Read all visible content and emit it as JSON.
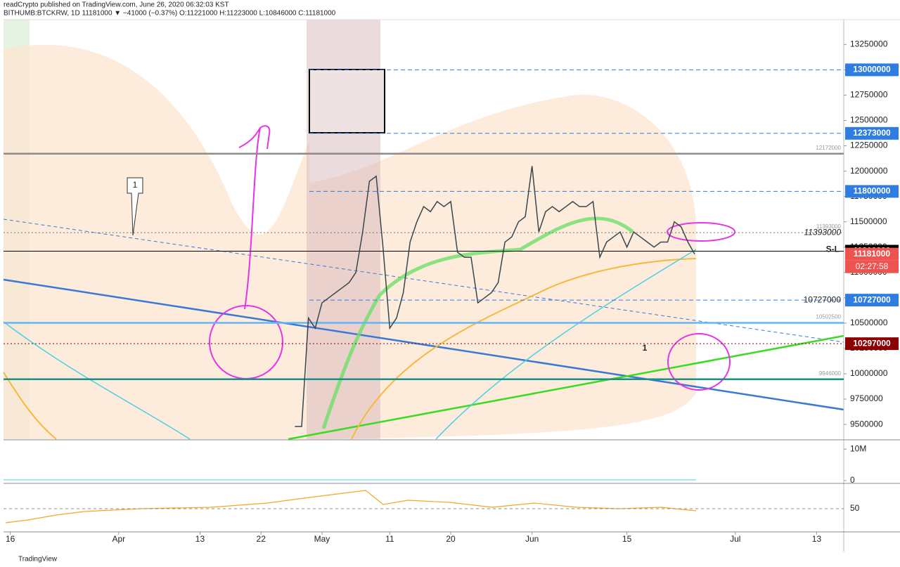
{
  "chart_data": {
    "type": "line",
    "title": "readCrypto published on TradingView.com, June 26, 2020 06:32:03 KST",
    "subtitle": "BITHUMB:BTCKRW, 1D 11181000 ▼ −41000 (−0.37%) O:11221000 H:11223000 L:10846000 C:11181000",
    "x": [
      "2020-04-27",
      "2020-04-28",
      "2020-04-29",
      "2020-04-30",
      "2020-05-01",
      "2020-05-02",
      "2020-05-03",
      "2020-05-04",
      "2020-05-05",
      "2020-05-06",
      "2020-05-07",
      "2020-05-08",
      "2020-05-09",
      "2020-05-10",
      "2020-05-11",
      "2020-05-12",
      "2020-05-13",
      "2020-05-14",
      "2020-05-15",
      "2020-05-16",
      "2020-05-17",
      "2020-05-18",
      "2020-05-19",
      "2020-05-20",
      "2020-05-21",
      "2020-05-22",
      "2020-05-23",
      "2020-05-24",
      "2020-05-25",
      "2020-05-26",
      "2020-05-27",
      "2020-05-28",
      "2020-05-29",
      "2020-05-30",
      "2020-05-31",
      "2020-06-01",
      "2020-06-02",
      "2020-06-03",
      "2020-06-04",
      "2020-06-05",
      "2020-06-06",
      "2020-06-07",
      "2020-06-08",
      "2020-06-09",
      "2020-06-10",
      "2020-06-11",
      "2020-06-12",
      "2020-06-13",
      "2020-06-14",
      "2020-06-15",
      "2020-06-16",
      "2020-06-17",
      "2020-06-18",
      "2020-06-19",
      "2020-06-20",
      "2020-06-21",
      "2020-06-22",
      "2020-06-23",
      "2020-06-24",
      "2020-06-25"
    ],
    "series": [
      {
        "color": "#37474f",
        "values": [
          9480000,
          9480000,
          10550000,
          10450000,
          10700000,
          10750000,
          10800000,
          10850000,
          10900000,
          11000000,
          11400000,
          11900000,
          11950000,
          11250000,
          10450000,
          10550000,
          10800000,
          11300000,
          11500000,
          11650000,
          11600000,
          11700000,
          11650000,
          11700000,
          11200000,
          11150000,
          11150000,
          10700000,
          10750000,
          10800000,
          10900000,
          11300000,
          11350000,
          11500000,
          11550000,
          12050000,
          11400000,
          11600000,
          11650000,
          11600000,
          11650000,
          11700000,
          11650000,
          11650000,
          11700000,
          11150000,
          11300000,
          11350000,
          11400000,
          11250000,
          11400000,
          11350000,
          11300000,
          11250000,
          11300000,
          11300000,
          11500000,
          11450000,
          11300000,
          11181000
        ]
      }
    ],
    "xlim": [
      "2020-03-15",
      "2020-07-17"
    ],
    "xticks": [
      {
        "value": "2020-03-16",
        "label": "16"
      },
      {
        "value": "2020-04-01",
        "label": "Apr"
      },
      {
        "value": "2020-04-13",
        "label": "13"
      },
      {
        "value": "2020-04-22",
        "label": "22"
      },
      {
        "value": "2020-05-01",
        "label": "May"
      },
      {
        "value": "2020-05-11",
        "label": "11"
      },
      {
        "value": "2020-05-20",
        "label": "20"
      },
      {
        "value": "2020-06-01",
        "label": "Jun"
      },
      {
        "value": "2020-06-15",
        "label": "15"
      },
      {
        "value": "2020-07-01",
        "label": "Jul"
      },
      {
        "value": "2020-07-13",
        "label": "13"
      }
    ],
    "ylim": [
      9355000,
      13495000
    ],
    "yticks": [
      9500000,
      9750000,
      10000000,
      10250000,
      10500000,
      10750000,
      11000000,
      11250000,
      11500000,
      11750000,
      12000000,
      12250000,
      12500000,
      12750000,
      13000000,
      13250000
    ],
    "levels": [
      {
        "value": 13000000,
        "color": "#2f7de1",
        "style": "dashed",
        "tag": true
      },
      {
        "value": 12373000,
        "color": "#2f7de1",
        "style": "dashed",
        "tag": true
      },
      {
        "value": 11800000,
        "color": "#2f7de1",
        "style": "dashed",
        "tag": true
      },
      {
        "value": 11210000,
        "color": "#000000",
        "style": "solid",
        "tag": true
      },
      {
        "value": 11181000,
        "color": "#ef5350",
        "style": "none",
        "tag": true
      },
      {
        "value": 10727000,
        "color": "#2f7de1",
        "style": "dashed",
        "tag": true
      },
      {
        "value": 10297000,
        "color": "#8b0000",
        "style": "dotted",
        "tag": true
      },
      {
        "value": 12172000,
        "color": "#8c8c8c",
        "style": "thick",
        "tag": false
      },
      {
        "value": 11393000,
        "color": "#777777",
        "style": "dotted",
        "tag": false
      },
      {
        "value": 10502500,
        "color": "#64b5f6",
        "style": "thick",
        "tag": false
      },
      {
        "value": 9946000,
        "color": "#1b8f8a",
        "style": "thick",
        "tag": false
      }
    ],
    "countdown": "02:27:58",
    "line_label": "S-L",
    "annotations": [
      "1",
      "1"
    ],
    "volume_ticks": [
      {
        "value": 10000000,
        "label": "10M"
      },
      0
    ],
    "rsi_ticks": [
      50
    ],
    "footer": "TradingView"
  }
}
